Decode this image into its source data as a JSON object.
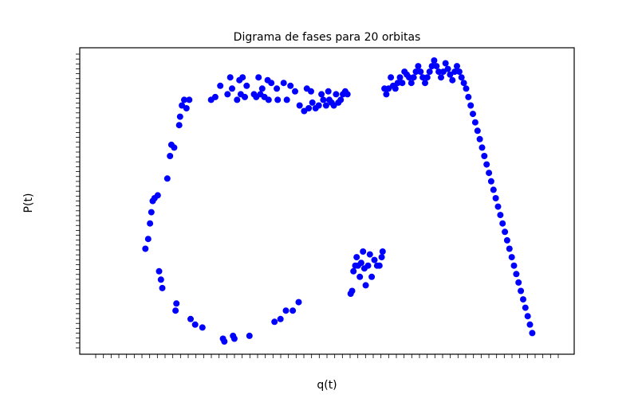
{
  "chart_data": {
    "type": "scatter",
    "title": "Digrama de fases para 20 orbitas",
    "xlabel": "q(t)",
    "ylabel": "P(t)",
    "marker_color": "#0000ff",
    "axis_color": "#000000",
    "grid": false,
    "legend": false,
    "note": "Tick labels on both axes are densely overprinted and illegible in the original; axes are treated as normalized 0-1 ranges.",
    "xlim": [
      0,
      1
    ],
    "ylim": [
      0,
      1
    ],
    "series": [
      {
        "values": [
          [
            0.102,
            0.33
          ],
          [
            0.108,
            0.365
          ],
          [
            0.112,
            0.42
          ],
          [
            0.115,
            0.46
          ],
          [
            0.118,
            0.5
          ],
          [
            0.122,
            0.51
          ],
          [
            0.129,
            0.52
          ],
          [
            0.132,
            0.25
          ],
          [
            0.136,
            0.22
          ],
          [
            0.139,
            0.19
          ],
          [
            0.15,
            0.58
          ],
          [
            0.156,
            0.66
          ],
          [
            0.159,
            0.7
          ],
          [
            0.165,
            0.69
          ],
          [
            0.168,
            0.11
          ],
          [
            0.17,
            0.135
          ],
          [
            0.176,
            0.77
          ],
          [
            0.178,
            0.8
          ],
          [
            0.182,
            0.84
          ],
          [
            0.187,
            0.86
          ],
          [
            0.192,
            0.83
          ],
          [
            0.198,
            0.86
          ],
          [
            0.201,
            0.08
          ],
          [
            0.211,
            0.06
          ],
          [
            0.227,
            0.05
          ],
          [
            0.246,
            0.86
          ],
          [
            0.255,
            0.87
          ],
          [
            0.266,
            0.91
          ],
          [
            0.272,
            0.01
          ],
          [
            0.275,
            0.0
          ],
          [
            0.282,
            0.88
          ],
          [
            0.288,
            0.94
          ],
          [
            0.292,
            0.9
          ],
          [
            0.294,
            0.02
          ],
          [
            0.297,
            0.01
          ],
          [
            0.303,
            0.86
          ],
          [
            0.308,
            0.93
          ],
          [
            0.311,
            0.88
          ],
          [
            0.315,
            0.94
          ],
          [
            0.32,
            0.87
          ],
          [
            0.324,
            0.91
          ],
          [
            0.33,
            0.02
          ],
          [
            0.34,
            0.88
          ],
          [
            0.345,
            0.87
          ],
          [
            0.35,
            0.94
          ],
          [
            0.354,
            0.88
          ],
          [
            0.358,
            0.9
          ],
          [
            0.363,
            0.87
          ],
          [
            0.37,
            0.93
          ],
          [
            0.372,
            0.86
          ],
          [
            0.378,
            0.92
          ],
          [
            0.385,
            0.07
          ],
          [
            0.39,
            0.9
          ],
          [
            0.392,
            0.86
          ],
          [
            0.398,
            0.08
          ],
          [
            0.405,
            0.92
          ],
          [
            0.41,
            0.11
          ],
          [
            0.412,
            0.86
          ],
          [
            0.42,
            0.91
          ],
          [
            0.425,
            0.11
          ],
          [
            0.43,
            0.89
          ],
          [
            0.438,
            0.14
          ],
          [
            0.44,
            0.84
          ],
          [
            0.45,
            0.82
          ],
          [
            0.456,
            0.9
          ],
          [
            0.46,
            0.83
          ],
          [
            0.465,
            0.89
          ],
          [
            0.468,
            0.85
          ],
          [
            0.475,
            0.83
          ],
          [
            0.482,
            0.84
          ],
          [
            0.488,
            0.88
          ],
          [
            0.492,
            0.86
          ],
          [
            0.498,
            0.84
          ],
          [
            0.503,
            0.89
          ],
          [
            0.505,
            0.86
          ],
          [
            0.51,
            0.85
          ],
          [
            0.515,
            0.84
          ],
          [
            0.52,
            0.88
          ],
          [
            0.525,
            0.85
          ],
          [
            0.53,
            0.86
          ],
          [
            0.535,
            0.88
          ],
          [
            0.54,
            0.89
          ],
          [
            0.545,
            0.88
          ],
          [
            0.552,
            0.17
          ],
          [
            0.555,
            0.18
          ],
          [
            0.558,
            0.25
          ],
          [
            0.562,
            0.27
          ],
          [
            0.565,
            0.3
          ],
          [
            0.568,
            0.27
          ],
          [
            0.572,
            0.23
          ],
          [
            0.575,
            0.28
          ],
          [
            0.579,
            0.32
          ],
          [
            0.582,
            0.26
          ],
          [
            0.585,
            0.2
          ],
          [
            0.59,
            0.27
          ],
          [
            0.594,
            0.31
          ],
          [
            0.598,
            0.23
          ],
          [
            0.604,
            0.29
          ],
          [
            0.61,
            0.27
          ],
          [
            0.615,
            0.27
          ],
          [
            0.62,
            0.3
          ],
          [
            0.622,
            0.32
          ],
          [
            0.626,
            0.9
          ],
          [
            0.63,
            0.88
          ],
          [
            0.635,
            0.9
          ],
          [
            0.64,
            0.94
          ],
          [
            0.645,
            0.91
          ],
          [
            0.65,
            0.9
          ],
          [
            0.655,
            0.92
          ],
          [
            0.66,
            0.94
          ],
          [
            0.665,
            0.92
          ],
          [
            0.67,
            0.96
          ],
          [
            0.675,
            0.95
          ],
          [
            0.68,
            0.94
          ],
          [
            0.685,
            0.92
          ],
          [
            0.69,
            0.94
          ],
          [
            0.695,
            0.96
          ],
          [
            0.7,
            0.98
          ],
          [
            0.705,
            0.96
          ],
          [
            0.71,
            0.94
          ],
          [
            0.715,
            0.92
          ],
          [
            0.72,
            0.94
          ],
          [
            0.725,
            0.96
          ],
          [
            0.73,
            0.98
          ],
          [
            0.735,
            1.0
          ],
          [
            0.74,
            0.98
          ],
          [
            0.745,
            0.96
          ],
          [
            0.75,
            0.94
          ],
          [
            0.755,
            0.96
          ],
          [
            0.76,
            0.99
          ],
          [
            0.765,
            0.97
          ],
          [
            0.77,
            0.95
          ],
          [
            0.775,
            0.93
          ],
          [
            0.78,
            0.96
          ],
          [
            0.785,
            0.98
          ],
          [
            0.79,
            0.96
          ],
          [
            0.795,
            0.94
          ],
          [
            0.8,
            0.92
          ],
          [
            0.805,
            0.9
          ],
          [
            0.81,
            0.87
          ],
          [
            0.815,
            0.84
          ],
          [
            0.82,
            0.81
          ],
          [
            0.825,
            0.78
          ],
          [
            0.83,
            0.75
          ],
          [
            0.835,
            0.72
          ],
          [
            0.84,
            0.69
          ],
          [
            0.845,
            0.66
          ],
          [
            0.85,
            0.63
          ],
          [
            0.855,
            0.6
          ],
          [
            0.86,
            0.57
          ],
          [
            0.865,
            0.54
          ],
          [
            0.87,
            0.51
          ],
          [
            0.875,
            0.48
          ],
          [
            0.88,
            0.45
          ],
          [
            0.885,
            0.42
          ],
          [
            0.89,
            0.39
          ],
          [
            0.895,
            0.36
          ],
          [
            0.9,
            0.33
          ],
          [
            0.905,
            0.3
          ],
          [
            0.91,
            0.27
          ],
          [
            0.915,
            0.24
          ],
          [
            0.92,
            0.21
          ],
          [
            0.925,
            0.18
          ],
          [
            0.93,
            0.15
          ],
          [
            0.935,
            0.12
          ],
          [
            0.94,
            0.09
          ],
          [
            0.945,
            0.06
          ],
          [
            0.95,
            0.03
          ]
        ]
      }
    ]
  }
}
